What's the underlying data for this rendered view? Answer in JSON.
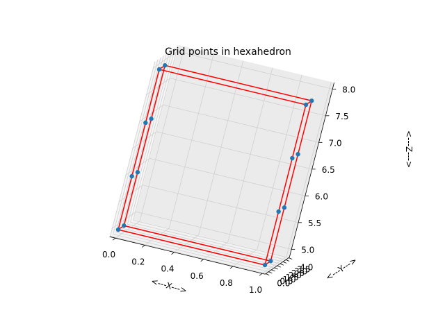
{
  "chart_data": {
    "type": "scatter",
    "title": "Grid points in hexahedron",
    "xlabel": "<---X--->",
    "ylabel": "<---Y--->",
    "zlabel": "<---Z--->",
    "xlim": [
      0.0,
      1.0
    ],
    "ylim": [
      0.0,
      4.0
    ],
    "zlim": [
      5.0,
      8.0
    ],
    "x_ticks": [
      "0.0",
      "0.2",
      "0.4",
      "0.6",
      "0.8",
      "1.0"
    ],
    "y_ticks": [
      "0.0",
      "0.5",
      "1.0",
      "1.5",
      "2.0",
      "2.5",
      "3.0",
      "3.5",
      "4.0"
    ],
    "z_ticks": [
      "5.0",
      "5.5",
      "6.0",
      "6.5",
      "7.0",
      "7.5",
      "8.0"
    ],
    "grid": true,
    "point_color": "#1f77b4",
    "edge_color": "#ff0000",
    "points": [
      {
        "x": 0.0,
        "y": 0.0,
        "z": 5.0
      },
      {
        "x": 0.0,
        "y": 0.0,
        "z": 6.0
      },
      {
        "x": 0.0,
        "y": 0.0,
        "z": 7.0
      },
      {
        "x": 0.0,
        "y": 0.0,
        "z": 8.0
      },
      {
        "x": 0.0,
        "y": 1.0,
        "z": 5.0
      },
      {
        "x": 0.0,
        "y": 1.0,
        "z": 6.0
      },
      {
        "x": 0.0,
        "y": 1.0,
        "z": 7.0
      },
      {
        "x": 0.0,
        "y": 1.0,
        "z": 8.0
      },
      {
        "x": 1.0,
        "y": 0.0,
        "z": 5.0
      },
      {
        "x": 1.0,
        "y": 0.0,
        "z": 6.0
      },
      {
        "x": 1.0,
        "y": 0.0,
        "z": 7.0
      },
      {
        "x": 1.0,
        "y": 0.0,
        "z": 8.0
      },
      {
        "x": 1.0,
        "y": 1.0,
        "z": 5.0
      },
      {
        "x": 1.0,
        "y": 1.0,
        "z": 6.0
      },
      {
        "x": 1.0,
        "y": 1.0,
        "z": 7.0
      },
      {
        "x": 1.0,
        "y": 1.0,
        "z": 8.0
      }
    ],
    "edges": [
      [
        [
          0,
          0,
          5
        ],
        [
          1,
          0,
          5
        ]
      ],
      [
        [
          1,
          0,
          5
        ],
        [
          1,
          1,
          5
        ]
      ],
      [
        [
          1,
          1,
          5
        ],
        [
          0,
          1,
          5
        ]
      ],
      [
        [
          0,
          1,
          5
        ],
        [
          0,
          0,
          5
        ]
      ],
      [
        [
          0,
          0,
          8
        ],
        [
          1,
          0,
          8
        ]
      ],
      [
        [
          1,
          0,
          8
        ],
        [
          1,
          1,
          8
        ]
      ],
      [
        [
          1,
          1,
          8
        ],
        [
          0,
          1,
          8
        ]
      ],
      [
        [
          0,
          1,
          8
        ],
        [
          0,
          0,
          8
        ]
      ],
      [
        [
          0,
          0,
          5
        ],
        [
          0,
          0,
          8
        ]
      ],
      [
        [
          1,
          0,
          5
        ],
        [
          1,
          0,
          8
        ]
      ],
      [
        [
          1,
          1,
          5
        ],
        [
          1,
          1,
          8
        ]
      ],
      [
        [
          0,
          1,
          5
        ],
        [
          0,
          1,
          8
        ]
      ]
    ]
  }
}
